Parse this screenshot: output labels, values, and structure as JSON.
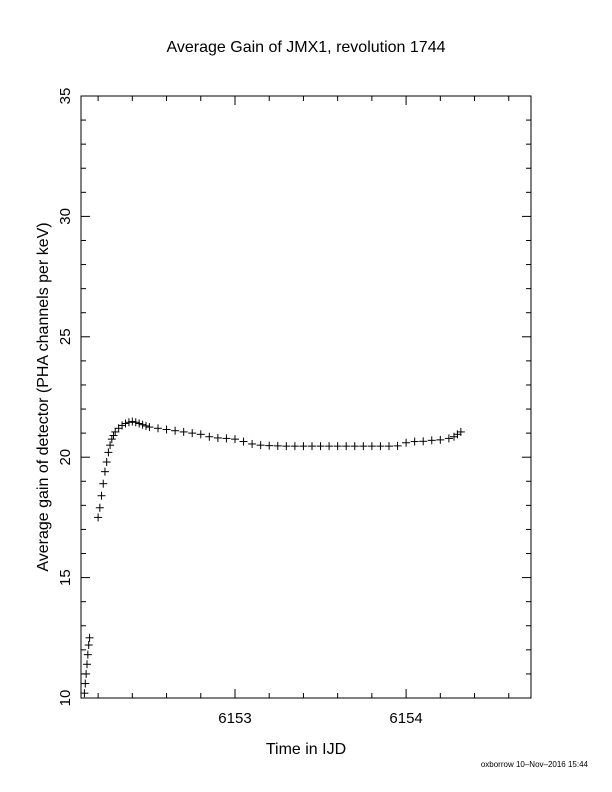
{
  "chart_data": {
    "type": "scatter",
    "title": "Average Gain of JMX1, revolution 1744",
    "xlabel": "Time in IJD",
    "ylabel": "Average gain of detector (PHA channels per keV)",
    "xlim": [
      6152.1,
      6154.73
    ],
    "ylim": [
      10,
      35
    ],
    "xticks": [
      6153,
      6154
    ],
    "yticks": [
      10,
      15,
      20,
      25,
      30,
      35
    ],
    "grid": false,
    "marker": "+",
    "series": [
      {
        "x": [
          6152.12,
          6152.125,
          6152.13,
          6152.135,
          6152.14,
          6152.145,
          6152.15,
          6152.2,
          6152.21,
          6152.22,
          6152.23,
          6152.24,
          6152.25,
          6152.26,
          6152.27,
          6152.28,
          6152.29,
          6152.3,
          6152.32,
          6152.34,
          6152.36,
          6152.38,
          6152.4,
          6152.42,
          6152.44,
          6152.46,
          6152.48,
          6152.5,
          6152.55,
          6152.6,
          6152.65,
          6152.7,
          6152.75,
          6152.8,
          6152.85,
          6152.9,
          6152.95,
          6153.0,
          6153.05,
          6153.1,
          6153.15,
          6153.2,
          6153.25,
          6153.3,
          6153.35,
          6153.4,
          6153.45,
          6153.5,
          6153.55,
          6153.6,
          6153.65,
          6153.7,
          6153.75,
          6153.8,
          6153.85,
          6153.9,
          6153.95,
          6154.0,
          6154.05,
          6154.1,
          6154.15,
          6154.2,
          6154.25,
          6154.28,
          6154.3,
          6154.32
        ],
        "y": [
          10.2,
          10.6,
          11.0,
          11.4,
          11.8,
          12.2,
          12.5,
          17.5,
          17.9,
          18.4,
          18.9,
          19.4,
          19.8,
          20.2,
          20.5,
          20.75,
          20.9,
          21.05,
          21.2,
          21.32,
          21.4,
          21.45,
          21.48,
          21.45,
          21.4,
          21.35,
          21.3,
          21.25,
          21.2,
          21.15,
          21.1,
          21.05,
          21.0,
          20.95,
          20.85,
          20.8,
          20.78,
          20.75,
          20.65,
          20.55,
          20.5,
          20.48,
          20.47,
          20.46,
          20.46,
          20.46,
          20.46,
          20.46,
          20.46,
          20.46,
          20.46,
          20.46,
          20.46,
          20.46,
          20.46,
          20.46,
          20.47,
          20.6,
          20.65,
          20.66,
          20.7,
          20.72,
          20.78,
          20.85,
          20.95,
          21.05
        ]
      }
    ]
  },
  "footer_note": "oxborrow 10–Nov–2016 15:44"
}
